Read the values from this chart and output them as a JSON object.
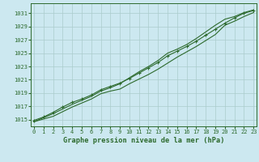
{
  "x": [
    0,
    1,
    2,
    3,
    4,
    5,
    6,
    7,
    8,
    9,
    10,
    11,
    12,
    13,
    14,
    15,
    16,
    17,
    18,
    19,
    20,
    21,
    22,
    23
  ],
  "line_bottom": [
    1014.7,
    1015.1,
    1015.5,
    1016.2,
    1016.9,
    1017.5,
    1018.1,
    1018.9,
    1019.3,
    1019.6,
    1020.4,
    1021.1,
    1021.8,
    1022.6,
    1023.5,
    1024.4,
    1025.2,
    1026.0,
    1026.9,
    1027.8,
    1029.2,
    1029.8,
    1030.5,
    1031.1
  ],
  "line_mid": [
    1014.9,
    1015.4,
    1016.1,
    1016.9,
    1017.6,
    1018.1,
    1018.7,
    1019.5,
    1020.0,
    1020.5,
    1021.2,
    1022.0,
    1022.8,
    1023.6,
    1024.6,
    1025.3,
    1026.0,
    1026.8,
    1027.7,
    1028.6,
    1029.5,
    1030.3,
    1031.0,
    1031.4
  ],
  "line_top": [
    1014.7,
    1015.3,
    1015.9,
    1016.6,
    1017.3,
    1017.9,
    1018.5,
    1019.3,
    1019.8,
    1020.4,
    1021.3,
    1022.2,
    1023.0,
    1023.9,
    1025.0,
    1025.6,
    1026.3,
    1027.2,
    1028.2,
    1029.2,
    1030.1,
    1030.5,
    1031.1,
    1031.5
  ],
  "line_color": "#2d6a2d",
  "bg_color": "#cce8f0",
  "grid_color": "#aacccc",
  "title": "Graphe pression niveau de la mer (hPa)",
  "title_color": "#2d6a2d",
  "ylim": [
    1014.0,
    1032.5
  ],
  "xlim": [
    -0.3,
    23.3
  ],
  "yticks": [
    1015,
    1017,
    1019,
    1021,
    1023,
    1025,
    1027,
    1029,
    1031
  ],
  "xticks": [
    0,
    1,
    2,
    3,
    4,
    5,
    6,
    7,
    8,
    9,
    10,
    11,
    12,
    13,
    14,
    15,
    16,
    17,
    18,
    19,
    20,
    21,
    22,
    23
  ],
  "tick_fontsize": 5.0,
  "title_fontsize": 6.2
}
